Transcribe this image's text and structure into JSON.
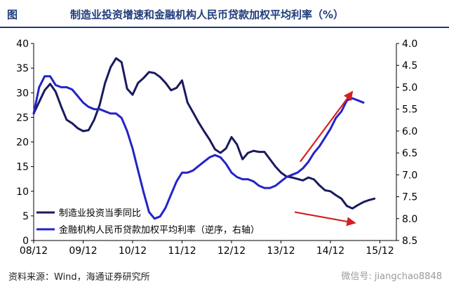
{
  "header": {
    "figure_label": "图",
    "title": "制造业投资增速和金融机构人民币贷款加权平均利率（%）"
  },
  "chart_data": {
    "type": "line",
    "title": "制造业投资增速和金融机构人民币贷款加权平均利率（%）",
    "x_ticks": [
      "08/12",
      "09/12",
      "10/12",
      "11/12",
      "12/12",
      "13/12",
      "14/12",
      "15/12"
    ],
    "y_left": {
      "ticks": [
        0,
        5,
        10,
        15,
        20,
        25,
        30,
        35,
        40
      ],
      "range": [
        0,
        40
      ]
    },
    "y_right": {
      "ticks": [
        4.0,
        4.5,
        5.0,
        5.5,
        6.0,
        6.5,
        7.0,
        7.5,
        8.0,
        8.5
      ],
      "range": [
        4.0,
        8.5
      ],
      "inverted": true
    },
    "legend_position": "bottom-left",
    "series": [
      {
        "name": "制造业投资当季同比",
        "axis": "left",
        "color": "#1a1a5e",
        "points": [
          [
            0,
            25.8
          ],
          [
            2,
            30.5
          ],
          [
            3,
            31.8
          ],
          [
            4,
            30.2
          ],
          [
            5,
            27.2
          ],
          [
            6,
            24.5
          ],
          [
            7,
            23.8
          ],
          [
            8,
            22.8
          ],
          [
            9,
            22.2
          ],
          [
            10,
            22.4
          ],
          [
            11,
            24.5
          ],
          [
            12,
            27.5
          ],
          [
            13,
            32.0
          ],
          [
            14,
            35.2
          ],
          [
            15,
            37.0
          ],
          [
            16,
            36.2
          ],
          [
            17,
            30.8
          ],
          [
            18,
            29.6
          ],
          [
            19,
            32.0
          ],
          [
            20,
            33.0
          ],
          [
            21,
            34.2
          ],
          [
            22,
            34.0
          ],
          [
            23,
            33.2
          ],
          [
            24,
            32.0
          ],
          [
            25,
            30.5
          ],
          [
            26,
            31.0
          ],
          [
            27,
            32.5
          ],
          [
            28,
            28.0
          ],
          [
            29,
            26.0
          ],
          [
            30,
            24.0
          ],
          [
            31,
            22.2
          ],
          [
            32,
            20.5
          ],
          [
            33,
            18.5
          ],
          [
            34,
            17.8
          ],
          [
            35,
            18.7
          ],
          [
            36,
            21.0
          ],
          [
            37,
            19.5
          ],
          [
            38,
            16.5
          ],
          [
            39,
            17.8
          ],
          [
            40,
            18.2
          ],
          [
            41,
            18.0
          ],
          [
            42,
            18.0
          ],
          [
            43,
            16.5
          ],
          [
            44,
            15.0
          ],
          [
            45,
            13.8
          ],
          [
            46,
            13.0
          ],
          [
            47,
            12.8
          ],
          [
            48,
            12.5
          ],
          [
            49,
            12.2
          ],
          [
            50,
            12.8
          ],
          [
            51,
            12.4
          ],
          [
            52,
            11.2
          ],
          [
            53,
            10.2
          ],
          [
            54,
            10.0
          ],
          [
            55,
            9.2
          ],
          [
            56,
            8.5
          ],
          [
            57,
            7.0
          ],
          [
            58,
            6.5
          ],
          [
            59,
            7.2
          ],
          [
            60,
            7.8
          ],
          [
            61,
            8.2
          ],
          [
            62,
            8.5
          ]
        ]
      },
      {
        "name": "金融机构人民币贷款加权平均利率（逆序，右轴）",
        "axis": "right",
        "color": "#2323c8",
        "points": [
          [
            0,
            5.6
          ],
          [
            1,
            5.0
          ],
          [
            2,
            4.75
          ],
          [
            3,
            4.75
          ],
          [
            4,
            4.95
          ],
          [
            5,
            5.0
          ],
          [
            6,
            5.0
          ],
          [
            7,
            5.05
          ],
          [
            8,
            5.2
          ],
          [
            9,
            5.35
          ],
          [
            10,
            5.45
          ],
          [
            11,
            5.5
          ],
          [
            12,
            5.5
          ],
          [
            13,
            5.55
          ],
          [
            14,
            5.6
          ],
          [
            15,
            5.6
          ],
          [
            16,
            5.7
          ],
          [
            17,
            6.0
          ],
          [
            18,
            6.4
          ],
          [
            19,
            6.9
          ],
          [
            20,
            7.4
          ],
          [
            21,
            7.85
          ],
          [
            22,
            8.0
          ],
          [
            23,
            7.95
          ],
          [
            24,
            7.75
          ],
          [
            25,
            7.45
          ],
          [
            26,
            7.15
          ],
          [
            27,
            6.95
          ],
          [
            28,
            6.95
          ],
          [
            29,
            6.9
          ],
          [
            30,
            6.8
          ],
          [
            31,
            6.7
          ],
          [
            32,
            6.6
          ],
          [
            33,
            6.55
          ],
          [
            34,
            6.6
          ],
          [
            35,
            6.75
          ],
          [
            36,
            6.95
          ],
          [
            37,
            7.05
          ],
          [
            38,
            7.1
          ],
          [
            39,
            7.1
          ],
          [
            40,
            7.15
          ],
          [
            41,
            7.25
          ],
          [
            42,
            7.3
          ],
          [
            43,
            7.3
          ],
          [
            44,
            7.25
          ],
          [
            45,
            7.15
          ],
          [
            46,
            7.05
          ],
          [
            47,
            7.0
          ],
          [
            48,
            6.95
          ],
          [
            49,
            6.85
          ],
          [
            50,
            6.7
          ],
          [
            51,
            6.5
          ],
          [
            52,
            6.35
          ],
          [
            53,
            6.15
          ],
          [
            54,
            5.95
          ],
          [
            55,
            5.7
          ],
          [
            56,
            5.55
          ],
          [
            57,
            5.3
          ],
          [
            58,
            5.25
          ],
          [
            59,
            5.3
          ],
          [
            60,
            5.35
          ]
        ]
      }
    ],
    "annotations": [
      {
        "type": "arrow",
        "color": "#d42020",
        "from": [
          47.5,
          7.85
        ],
        "to": [
          58.5,
          8.1
        ],
        "axis": "right"
      },
      {
        "type": "arrow",
        "color": "#d42020",
        "from": [
          48.5,
          6.7
        ],
        "to": [
          58.0,
          5.1
        ],
        "axis": "right"
      }
    ]
  },
  "footer": {
    "source": "资料来源：Wind，海通证券研究所",
    "watermark": "微信号: jiangchao8848"
  }
}
